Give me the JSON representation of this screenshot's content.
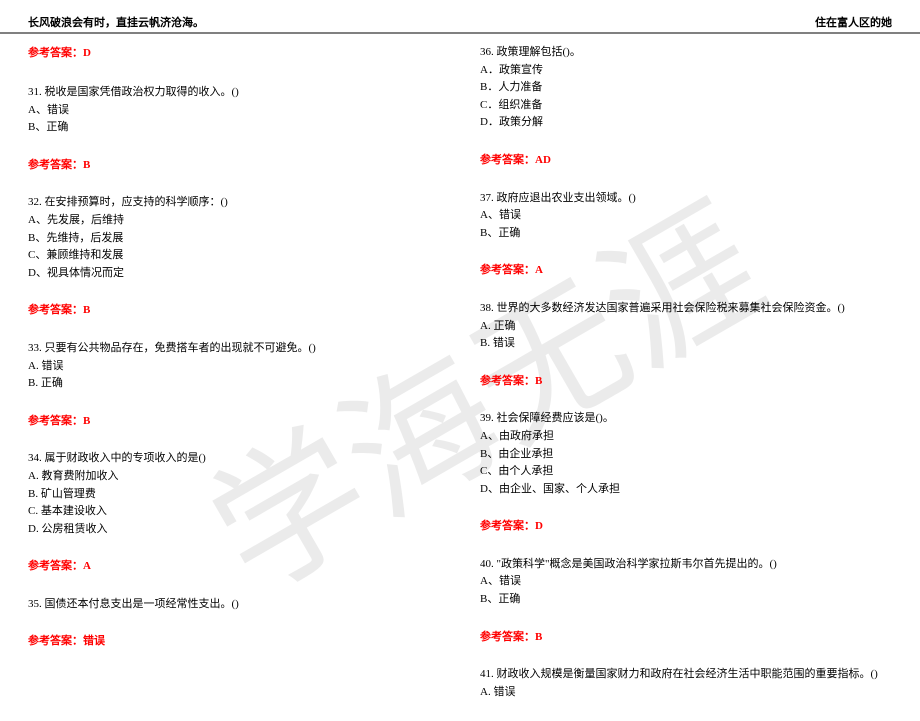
{
  "watermark": "学海无涯",
  "header": {
    "left": "长风破浪会有时，直挂云帆济沧海。",
    "right": "住在富人区的她"
  },
  "leftCol": {
    "ans0": "参考答案：D",
    "q31": "31. 税收是国家凭借政治权力取得的收入。()",
    "q31a": "A、错误",
    "q31b": "B、正确",
    "ans31": "参考答案：B",
    "q32": "32. 在安排预算时，应支持的科学顺序：()",
    "q32a": "A、先发展，后维持",
    "q32b": "B、先维持，后发展",
    "q32c": "C、兼顾维持和发展",
    "q32d": "D、视具体情况而定",
    "ans32": "参考答案：B",
    "q33": "33. 只要有公共物品存在，免费搭车者的出现就不可避免。()",
    "q33a": "A. 错误",
    "q33b": "B. 正确",
    "ans33": "参考答案：B",
    "q34": "34. 属于财政收入中的专项收入的是()",
    "q34a": "A. 教育费附加收入",
    "q34b": "B. 矿山管理费",
    "q34c": "C. 基本建设收入",
    "q34d": "D. 公房租赁收入",
    "ans34": "参考答案：A",
    "q35": "35. 国债还本付息支出是一项经常性支出。()",
    "ans35": "参考答案：错误"
  },
  "rightCol": {
    "q36": "36. 政策理解包括()。",
    "q36a": "A．政策宣传",
    "q36b": "B．人力准备",
    "q36c": "C．组织准备",
    "q36d": "D．政策分解",
    "ans36": "参考答案：AD",
    "q37": "37. 政府应退出农业支出领域。()",
    "q37a": "A、错误",
    "q37b": "B、正确",
    "ans37": "参考答案：A",
    "q38": "38. 世界的大多数经济发达国家普遍采用社会保险税来募集社会保险资金。()",
    "q38a": "A. 正确",
    "q38b": "B. 错误",
    "ans38": "参考答案：B",
    "q39": "39. 社会保障经费应该是()。",
    "q39a": "A、由政府承担",
    "q39b": "B、由企业承担",
    "q39c": "C、由个人承担",
    "q39d": "D、由企业、国家、个人承担",
    "ans39": "参考答案：D",
    "q40": "40. \"政策科学\"概念是美国政治科学家拉斯韦尔首先提出的。()",
    "q40a": "A、错误",
    "q40b": "B、正确",
    "ans40": "参考答案：B",
    "q41": "41. 财政收入规模是衡量国家财力和政府在社会经济生活中职能范围的重要指标。()",
    "q41a": "A. 错误"
  }
}
